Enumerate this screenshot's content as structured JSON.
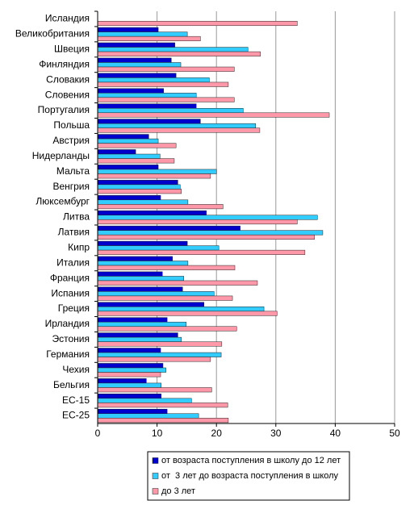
{
  "chart_data": {
    "type": "hbar",
    "categories": [
      "Исландия",
      "Великобритания",
      "Швеция",
      "Финляндия",
      "Словакия",
      "Словения",
      "Португалия",
      "Польша",
      "Австрия",
      "Нидерланды",
      "Мальта",
      "Венгрия",
      "Люксембург",
      "Литва",
      "Латвия",
      "Кипр",
      "Италия",
      "Франция",
      "Испания",
      "Греция",
      "Ирландия",
      "Эстония",
      "Германия",
      "Чехия",
      "Бельгия",
      "ЕС-15",
      "ЕС-25"
    ],
    "series": [
      {
        "name": "от возраста поступления в школу до 12 лет",
        "color": "#0000cc",
        "values": [
          null,
          10.2,
          13.0,
          12.4,
          13.2,
          11.1,
          16.6,
          17.3,
          8.6,
          6.4,
          10.2,
          13.5,
          10.6,
          18.3,
          24.0,
          15.1,
          12.6,
          10.9,
          14.3,
          17.9,
          11.7,
          13.5,
          10.6,
          11.0,
          8.2,
          10.7,
          11.7
        ]
      },
      {
        "name": "от  3 лет до возраста поступления в школу",
        "color": "#33ccff",
        "values": [
          null,
          15.1,
          25.3,
          14.0,
          18.8,
          16.6,
          24.5,
          26.6,
          10.2,
          10.5,
          20.0,
          13.9,
          15.2,
          37.0,
          37.9,
          20.4,
          15.2,
          14.5,
          19.6,
          28.0,
          14.9,
          14.1,
          20.8,
          11.5,
          10.7,
          15.8,
          17.0
        ]
      },
      {
        "name": "до 3 лет",
        "color": "#ff99aa",
        "values": [
          33.6,
          17.3,
          27.4,
          23.0,
          22.0,
          23.0,
          39.0,
          27.3,
          13.2,
          12.9,
          19.0,
          14.1,
          21.1,
          33.6,
          36.5,
          34.9,
          23.1,
          26.9,
          22.7,
          30.2,
          23.4,
          20.9,
          19.0,
          10.6,
          19.2,
          21.9,
          22.0
        ]
      }
    ],
    "xlim": [
      0,
      50
    ],
    "xticks": [
      0,
      10,
      20,
      30,
      40,
      50
    ],
    "grid": true
  }
}
